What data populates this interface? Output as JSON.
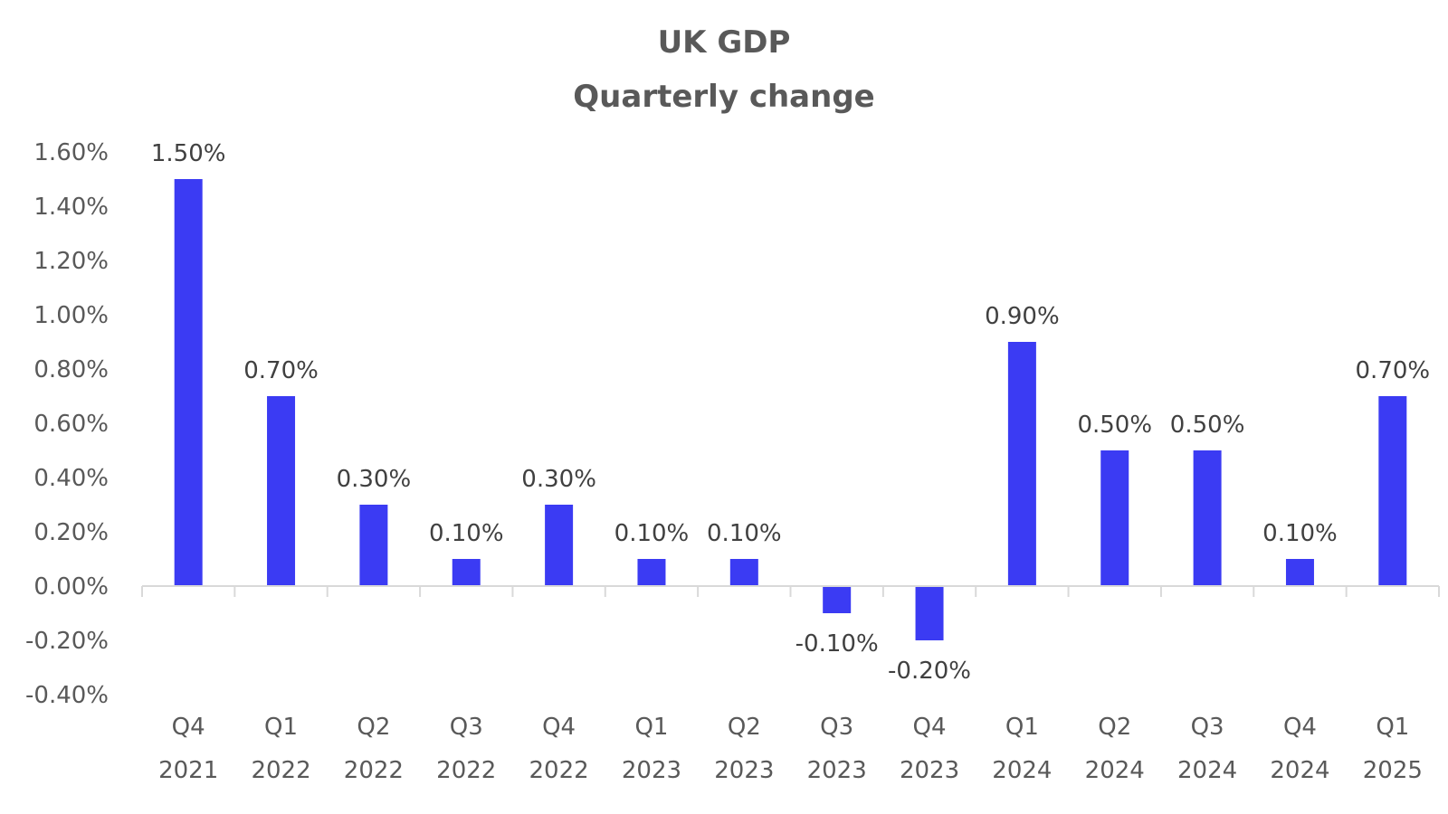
{
  "chart_data": {
    "type": "bar",
    "title": "UK GDP",
    "subtitle": "Quarterly change",
    "xlabel": "",
    "ylabel": "",
    "categories": [
      [
        "Q4",
        "2021"
      ],
      [
        "Q1",
        "2022"
      ],
      [
        "Q2",
        "2022"
      ],
      [
        "Q3",
        "2022"
      ],
      [
        "Q4",
        "2022"
      ],
      [
        "Q1",
        "2023"
      ],
      [
        "Q2",
        "2023"
      ],
      [
        "Q3",
        "2023"
      ],
      [
        "Q4",
        "2023"
      ],
      [
        "Q1",
        "2024"
      ],
      [
        "Q2",
        "2024"
      ],
      [
        "Q3",
        "2024"
      ],
      [
        "Q4",
        "2024"
      ],
      [
        "Q1",
        "2025"
      ]
    ],
    "values": [
      1.5,
      0.7,
      0.3,
      0.1,
      0.3,
      0.1,
      0.1,
      -0.1,
      -0.2,
      0.9,
      0.5,
      0.5,
      0.1,
      0.7
    ],
    "data_labels": [
      "1.50%",
      "0.70%",
      "0.30%",
      "0.10%",
      "0.30%",
      "0.10%",
      "0.10%",
      "-0.10%",
      "-0.20%",
      "0.90%",
      "0.50%",
      "0.50%",
      "0.10%",
      "0.70%"
    ],
    "ylim": [
      -0.4,
      1.6
    ],
    "yticks": [
      1.6,
      1.4,
      1.2,
      1.0,
      0.8,
      0.6,
      0.4,
      0.2,
      0.0,
      -0.2,
      -0.4
    ],
    "ytick_labels": [
      "1.60%",
      "1.40%",
      "1.20%",
      "1.00%",
      "0.80%",
      "0.60%",
      "0.40%",
      "0.20%",
      "0.00%",
      "-0.20%",
      "-0.40%"
    ],
    "grid": false,
    "legend": "none",
    "colors": {
      "bar": "#3b3bf3",
      "axis": "#d9d9d9",
      "text": "#595959",
      "label": "#404040"
    }
  }
}
